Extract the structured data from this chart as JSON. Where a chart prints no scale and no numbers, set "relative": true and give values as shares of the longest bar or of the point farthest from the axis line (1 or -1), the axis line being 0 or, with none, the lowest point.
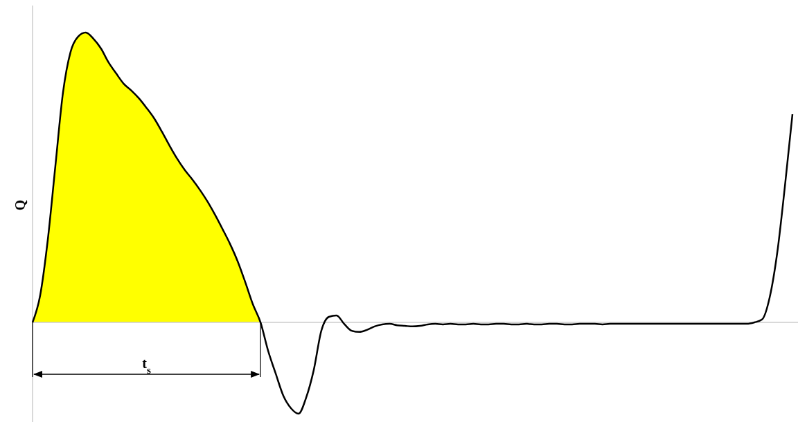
{
  "chart_data": {
    "type": "line",
    "relative": true,
    "ylabel": "Q",
    "annotations": [
      "t$_{s}$"
    ],
    "categories": [
      null,
      null,
      null,
      null,
      null,
      null,
      null,
      null,
      null,
      null,
      null,
      null,
      null,
      null,
      null,
      null,
      null,
      null,
      null,
      null,
      null,
      null,
      null,
      null,
      null,
      null,
      null,
      null,
      null,
      null,
      null,
      null,
      null,
      null,
      null,
      null,
      null,
      null,
      null,
      null,
      null,
      null,
      null,
      null,
      null,
      null,
      null,
      null,
      null,
      null,
      null,
      null,
      null,
      null,
      null,
      null,
      null,
      null,
      null,
      null,
      null,
      null,
      null,
      null,
      null,
      null,
      null,
      null,
      null,
      null,
      null,
      null,
      null,
      null,
      null,
      null,
      null,
      null,
      null,
      null,
      null,
      null,
      null,
      null,
      null,
      null,
      null,
      null,
      null,
      null,
      null,
      null,
      null,
      null,
      null,
      null,
      null,
      null,
      null,
      null,
      null
    ],
    "series": [
      {
        "type": "area",
        "color": "#ffff00",
        "values": [
          0,
          0.093,
          0.284,
          0.539,
          0.792,
          0.933,
          0.986,
          1.0,
          0.979,
          0.945,
          0.897,
          0.859,
          0.823,
          0.8,
          0.773,
          0.74,
          0.704,
          0.659,
          0.611,
          0.566,
          0.527,
          0.494,
          0.458,
          0.418,
          0.372,
          0.322,
          0.27,
          0.21,
          0.138,
          0.062,
          0,
          null,
          null,
          null,
          null,
          null,
          null,
          null,
          null,
          null,
          null,
          null,
          null,
          null,
          null,
          null,
          null,
          null,
          null,
          null,
          null,
          null,
          null,
          null,
          null,
          null,
          null,
          null,
          null,
          null,
          null,
          null,
          null,
          null,
          null,
          null,
          null,
          null,
          null,
          null,
          null,
          null,
          null,
          null,
          null,
          null,
          null,
          null,
          null,
          null,
          null,
          null,
          null,
          null,
          null,
          null,
          null,
          null,
          null,
          null,
          null,
          null,
          null,
          null,
          null,
          null,
          null,
          null,
          null,
          null,
          null
        ]
      },
      {
        "color": "#000000",
        "values": [
          0,
          0.093,
          0.284,
          0.539,
          0.792,
          0.933,
          0.986,
          1.0,
          0.979,
          0.945,
          0.897,
          0.859,
          0.823,
          0.8,
          0.773,
          0.74,
          0.704,
          0.659,
          0.611,
          0.566,
          0.527,
          0.494,
          0.458,
          0.418,
          0.372,
          0.322,
          0.27,
          0.21,
          0.138,
          0.062,
          0,
          -0.098,
          -0.177,
          -0.253,
          -0.296,
          -0.315,
          -0.26,
          -0.165,
          -0.029,
          0.019,
          0.024,
          -0.005,
          -0.029,
          -0.033,
          -0.026,
          -0.014,
          -0.007,
          -0.005,
          -0.01,
          -0.012,
          -0.014,
          -0.012,
          -0.007,
          -0.005,
          -0.007,
          -0.005,
          -0.007,
          -0.007,
          -0.005,
          -0.007,
          -0.007,
          -0.005,
          -0.005,
          -0.007,
          -0.007,
          -0.005,
          -0.007,
          -0.007,
          -0.005,
          -0.005,
          -0.007,
          -0.007,
          -0.005,
          -0.005,
          -0.005,
          -0.007,
          -0.005,
          -0.005,
          -0.005,
          -0.005,
          -0.005,
          -0.005,
          -0.005,
          -0.005,
          -0.005,
          -0.005,
          -0.005,
          -0.005,
          -0.005,
          -0.005,
          -0.005,
          -0.005,
          -0.005,
          -0.005,
          -0.005,
          0,
          0.01,
          0.086,
          0.241,
          0.468,
          0.718
        ]
      }
    ]
  }
}
